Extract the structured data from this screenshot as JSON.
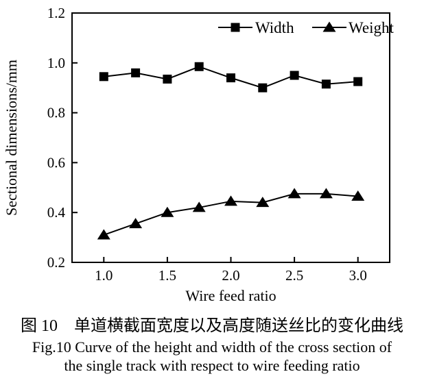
{
  "figure": {
    "caption_zh": "图 10　单道横截面宽度以及高度随送丝比的变化曲线",
    "caption_en_line1": "Fig.10 Curve of the height and width of the cross section of",
    "caption_en_line2": "the single track with respect to wire feeding ratio"
  },
  "chart_data": {
    "type": "line",
    "title": "",
    "xlabel": "Wire feed ratio",
    "ylabel": "Sectional dimensions/mm",
    "x": [
      1.0,
      1.25,
      1.5,
      1.75,
      2.0,
      2.25,
      2.5,
      2.75,
      3.0
    ],
    "series": [
      {
        "name": "Width",
        "marker": "square",
        "values": [
          0.945,
          0.96,
          0.935,
          0.985,
          0.94,
          0.9,
          0.95,
          0.915,
          0.925
        ]
      },
      {
        "name": "Weight",
        "marker": "triangle",
        "values": [
          0.31,
          0.355,
          0.4,
          0.42,
          0.445,
          0.44,
          0.475,
          0.475,
          0.465
        ]
      }
    ],
    "xlim": [
      0.75,
      3.25
    ],
    "ylim": [
      0.2,
      1.2
    ],
    "x_ticks": {
      "values": [
        1.0,
        1.5,
        2.0,
        2.5,
        3.0
      ],
      "labels": [
        "1.0",
        "1.5",
        "2.0",
        "2.5",
        "3.0"
      ]
    },
    "y_ticks": {
      "values": [
        0.2,
        0.4,
        0.6,
        0.8,
        1.0,
        1.2
      ],
      "labels": [
        "0.2",
        "0.4",
        "0.6",
        "0.8",
        "1.0",
        "1.2"
      ]
    },
    "grid": false,
    "legend_position": "top-right-inside",
    "colors": {
      "foreground": "#000000",
      "background": "#ffffff"
    }
  }
}
